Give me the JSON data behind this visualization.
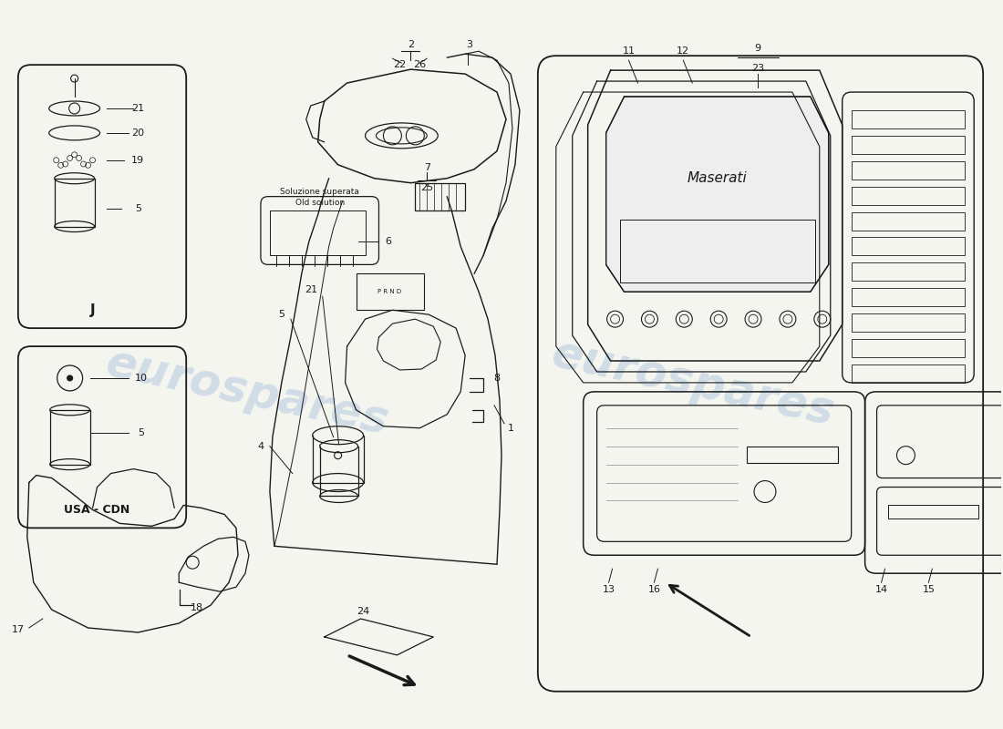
{
  "bg_color": "#f5f5f0",
  "line_color": "#1a1a1a",
  "wm_color_left": "#b8cce0",
  "wm_color_right": "#b8cce0",
  "watermark": "eurospares",
  "soluzione_text1": "Soluzione superata",
  "soluzione_text2": "Old solution",
  "label_J": "J",
  "label_USA_CDN": "USA - CDN"
}
